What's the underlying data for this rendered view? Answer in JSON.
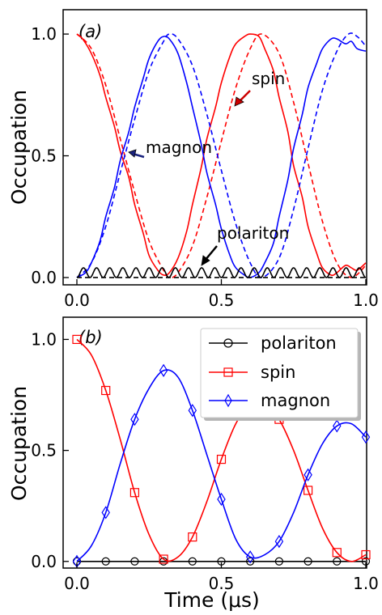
{
  "chart_data": [
    {
      "type": "line",
      "panel_label": "(a)",
      "ylabel": "Occupation",
      "xlim": [
        0.0,
        1.0
      ],
      "ylim": [
        -0.03,
        1.1
      ],
      "x_ticks": [
        "0.0",
        "0.5",
        "1.0"
      ],
      "y_ticks": [
        "0.0",
        "0.5",
        "1.0"
      ],
      "annotations": [
        {
          "text": "spin",
          "arrow_color": "#cc0000"
        },
        {
          "text": "magnon",
          "arrow_color": "#1a237e"
        },
        {
          "text": "polariton",
          "arrow_color": "#000000"
        }
      ],
      "series": [
        {
          "color": "#ff0000",
          "style": "solid",
          "x": [
            0.0,
            0.02,
            0.05,
            0.08,
            0.1,
            0.13,
            0.15,
            0.18,
            0.2,
            0.23,
            0.25,
            0.28,
            0.3,
            0.32,
            0.35,
            0.38,
            0.4,
            0.43,
            0.45,
            0.48,
            0.5,
            0.53,
            0.55,
            0.58,
            0.6,
            0.63,
            0.65,
            0.68,
            0.7,
            0.73,
            0.75,
            0.78,
            0.8,
            0.83,
            0.85,
            0.88,
            0.9,
            0.93,
            0.95,
            0.97,
            1.0
          ],
          "y": [
            1.0,
            0.98,
            0.92,
            0.83,
            0.74,
            0.62,
            0.52,
            0.41,
            0.3,
            0.18,
            0.09,
            0.03,
            0.01,
            0.02,
            0.08,
            0.19,
            0.3,
            0.45,
            0.57,
            0.7,
            0.8,
            0.91,
            0.96,
            0.99,
            1.0,
            0.99,
            0.94,
            0.85,
            0.74,
            0.6,
            0.46,
            0.33,
            0.21,
            0.1,
            0.04,
            0.01,
            0.02,
            0.05,
            0.04,
            0.03,
            0.06
          ]
        },
        {
          "color": "#ff0000",
          "style": "dashed",
          "x": [
            0.0,
            0.05,
            0.1,
            0.15,
            0.2,
            0.25,
            0.3,
            0.32,
            0.35,
            0.4,
            0.45,
            0.5,
            0.55,
            0.6,
            0.64,
            0.7,
            0.75,
            0.8,
            0.85,
            0.9,
            0.95,
            1.0
          ],
          "y": [
            1.0,
            0.94,
            0.79,
            0.57,
            0.35,
            0.15,
            0.03,
            0.0,
            0.02,
            0.13,
            0.33,
            0.56,
            0.78,
            0.94,
            1.0,
            0.92,
            0.72,
            0.47,
            0.23,
            0.06,
            0.0,
            0.05
          ]
        },
        {
          "color": "#0000ff",
          "style": "solid",
          "x": [
            0.0,
            0.03,
            0.05,
            0.08,
            0.1,
            0.13,
            0.15,
            0.18,
            0.2,
            0.23,
            0.25,
            0.28,
            0.3,
            0.32,
            0.35,
            0.38,
            0.4,
            0.43,
            0.45,
            0.48,
            0.5,
            0.53,
            0.55,
            0.58,
            0.6,
            0.63,
            0.65,
            0.68,
            0.7,
            0.73,
            0.75,
            0.78,
            0.8,
            0.83,
            0.85,
            0.88,
            0.9,
            0.93,
            0.95,
            0.97,
            1.0
          ],
          "y": [
            0.0,
            0.02,
            0.06,
            0.15,
            0.25,
            0.37,
            0.48,
            0.6,
            0.7,
            0.82,
            0.9,
            0.97,
            0.99,
            0.98,
            0.92,
            0.8,
            0.7,
            0.55,
            0.43,
            0.3,
            0.2,
            0.09,
            0.04,
            0.01,
            0.0,
            0.02,
            0.06,
            0.14,
            0.25,
            0.4,
            0.53,
            0.67,
            0.78,
            0.88,
            0.94,
            0.98,
            0.98,
            0.96,
            0.97,
            0.94,
            0.93
          ]
        },
        {
          "color": "#0000ff",
          "style": "dashed",
          "x": [
            0.0,
            0.05,
            0.1,
            0.15,
            0.2,
            0.25,
            0.3,
            0.32,
            0.35,
            0.4,
            0.45,
            0.5,
            0.55,
            0.6,
            0.64,
            0.7,
            0.75,
            0.8,
            0.85,
            0.9,
            0.94,
            0.97,
            1.0
          ],
          "y": [
            0.0,
            0.06,
            0.21,
            0.43,
            0.65,
            0.85,
            0.97,
            1.0,
            0.98,
            0.87,
            0.67,
            0.44,
            0.22,
            0.06,
            0.0,
            0.08,
            0.28,
            0.53,
            0.77,
            0.93,
            1.0,
            0.99,
            0.95
          ]
        },
        {
          "color": "#000000",
          "style": "solid",
          "wavy": true,
          "x_range": [
            0.0,
            1.0
          ],
          "mean": 0.02,
          "amplitude": 0.02,
          "cycles": 22
        },
        {
          "color": "#000000",
          "style": "dashed",
          "x": [
            0.0,
            1.0
          ],
          "y": [
            0.0,
            0.0
          ]
        }
      ]
    },
    {
      "type": "line",
      "panel_label": "(b)",
      "xlabel": "Time (μs)",
      "ylabel": "Occupation",
      "xlim": [
        0.0,
        1.0
      ],
      "ylim": [
        -0.03,
        1.1
      ],
      "x_ticks": [
        "0.0",
        "0.5",
        "1.0"
      ],
      "y_ticks": [
        "0.0",
        "0.5",
        "1.0"
      ],
      "legend_position": "top-right",
      "series": [
        {
          "name": "polariton",
          "color": "#000000",
          "marker": "circle",
          "x": [
            0.0,
            1.0
          ],
          "y": [
            0.0,
            0.0
          ],
          "marker_x": [
            0.0,
            0.1,
            0.2,
            0.3,
            0.4,
            0.5,
            0.6,
            0.7,
            0.8,
            0.9,
            1.0
          ],
          "marker_y": [
            0.0,
            0.0,
            0.0,
            0.0,
            0.0,
            0.0,
            0.0,
            0.0,
            0.0,
            0.0,
            0.0
          ]
        },
        {
          "name": "spin",
          "color": "#ff0000",
          "marker": "square",
          "x": [
            0.0,
            0.05,
            0.1,
            0.15,
            0.2,
            0.25,
            0.3,
            0.35,
            0.4,
            0.45,
            0.5,
            0.55,
            0.6,
            0.65,
            0.7,
            0.75,
            0.8,
            0.85,
            0.9,
            0.95,
            1.0
          ],
          "y": [
            1.0,
            0.93,
            0.77,
            0.55,
            0.31,
            0.12,
            0.01,
            0.02,
            0.11,
            0.27,
            0.46,
            0.62,
            0.71,
            0.72,
            0.64,
            0.5,
            0.32,
            0.15,
            0.04,
            0.0,
            0.03
          ],
          "marker_x": [
            0.0,
            0.1,
            0.2,
            0.3,
            0.4,
            0.5,
            0.6,
            0.7,
            0.8,
            0.9,
            1.0
          ],
          "marker_y": [
            1.0,
            0.77,
            0.31,
            0.01,
            0.11,
            0.46,
            0.71,
            0.64,
            0.32,
            0.04,
            0.03
          ]
        },
        {
          "name": "magnon",
          "color": "#0000ff",
          "marker": "diamond",
          "x": [
            0.0,
            0.05,
            0.1,
            0.15,
            0.2,
            0.25,
            0.3,
            0.35,
            0.4,
            0.45,
            0.5,
            0.55,
            0.6,
            0.65,
            0.7,
            0.75,
            0.8,
            0.85,
            0.9,
            0.95,
            1.0
          ],
          "y": [
            0.0,
            0.07,
            0.22,
            0.44,
            0.64,
            0.78,
            0.86,
            0.83,
            0.68,
            0.48,
            0.28,
            0.1,
            0.02,
            0.03,
            0.09,
            0.22,
            0.39,
            0.53,
            0.61,
            0.62,
            0.56
          ],
          "marker_x": [
            0.0,
            0.1,
            0.2,
            0.3,
            0.4,
            0.5,
            0.6,
            0.7,
            0.8,
            0.9,
            1.0
          ],
          "marker_y": [
            0.0,
            0.22,
            0.64,
            0.86,
            0.68,
            0.28,
            0.02,
            0.09,
            0.39,
            0.61,
            0.56
          ]
        }
      ]
    }
  ]
}
